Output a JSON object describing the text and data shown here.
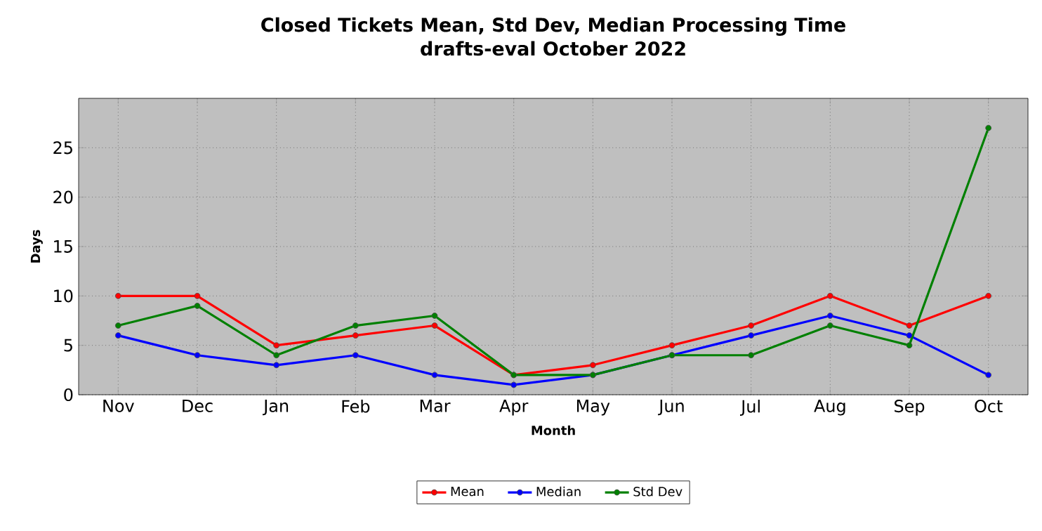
{
  "chart_data": {
    "type": "line",
    "title": "Closed Tickets Mean, Std Dev, Median Processing Time",
    "subtitle": "drafts-eval October 2022",
    "xlabel": "Month",
    "ylabel": "Days",
    "categories": [
      "Nov",
      "Dec",
      "Jan",
      "Feb",
      "Mar",
      "Apr",
      "May",
      "Jun",
      "Jul",
      "Aug",
      "Sep",
      "Oct"
    ],
    "series": [
      {
        "name": "Mean",
        "color": "#ff0000",
        "values": [
          10,
          10,
          5,
          6,
          7,
          2,
          3,
          5,
          7,
          10,
          7,
          10
        ]
      },
      {
        "name": "Median",
        "color": "#0000ff",
        "values": [
          6,
          4,
          3,
          4,
          2,
          1,
          2,
          4,
          6,
          8,
          6,
          2
        ]
      },
      {
        "name": "Std Dev",
        "color": "#008000",
        "values": [
          7,
          9,
          4,
          7,
          8,
          2,
          2,
          4,
          4,
          7,
          5,
          27
        ]
      }
    ],
    "ylim": [
      0,
      30
    ],
    "yticks": [
      0,
      5,
      10,
      15,
      20,
      25
    ],
    "grid": true,
    "legend": "bottom",
    "marker": "circle",
    "line_style": "solid"
  }
}
